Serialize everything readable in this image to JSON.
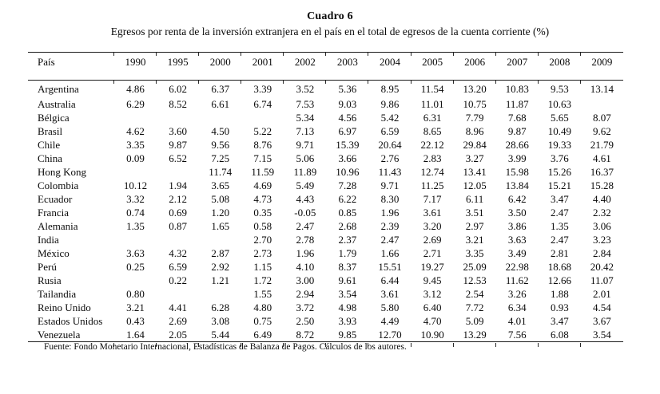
{
  "title": "Cuadro 6",
  "subtitle": "Egresos por renta de la inversión extranjera en el país en el total de egresos de la cuenta corriente (%)",
  "footer": "Fuente: Fondo Monetario Internacional, Estadísticas de Balanza de Pagos. Cálculos de los autores.",
  "table": {
    "col_headers": [
      "País",
      "1990",
      "1995",
      "2000",
      "2001",
      "2002",
      "2003",
      "2004",
      "2005",
      "2006",
      "2007",
      "2008",
      "2009"
    ],
    "rows": [
      {
        "country": "Argentina",
        "values": [
          "4.86",
          "6.02",
          "6.37",
          "3.39",
          "3.52",
          "5.36",
          "8.95",
          "11.54",
          "13.20",
          "10.83",
          "9.53",
          "13.14"
        ]
      },
      {
        "country": "Australia",
        "values": [
          "6.29",
          "8.52",
          "6.61",
          "6.74",
          "7.53",
          "9.03",
          "9.86",
          "11.01",
          "10.75",
          "11.87",
          "10.63",
          ""
        ]
      },
      {
        "country": "Bélgica",
        "values": [
          "",
          "",
          "",
          "",
          "5.34",
          "4.56",
          "5.42",
          "6.31",
          "7.79",
          "7.68",
          "5.65",
          "8.07"
        ]
      },
      {
        "country": "Brasil",
        "values": [
          "4.62",
          "3.60",
          "4.50",
          "5.22",
          "7.13",
          "6.97",
          "6.59",
          "8.65",
          "8.96",
          "9.87",
          "10.49",
          "9.62"
        ]
      },
      {
        "country": "Chile",
        "values": [
          "3.35",
          "9.87",
          "9.56",
          "8.76",
          "9.71",
          "15.39",
          "20.64",
          "22.12",
          "29.84",
          "28.66",
          "19.33",
          "21.79"
        ]
      },
      {
        "country": "China",
        "values": [
          "0.09",
          "6.52",
          "7.25",
          "7.15",
          "5.06",
          "3.66",
          "2.76",
          "2.83",
          "3.27",
          "3.99",
          "3.76",
          "4.61"
        ]
      },
      {
        "country": "Hong Kong",
        "values": [
          "",
          "",
          "11.74",
          "11.59",
          "11.89",
          "10.96",
          "11.43",
          "12.74",
          "13.41",
          "15.98",
          "15.26",
          "16.37"
        ]
      },
      {
        "country": "Colombia",
        "values": [
          "10.12",
          "1.94",
          "3.65",
          "4.69",
          "5.49",
          "7.28",
          "9.71",
          "11.25",
          "12.05",
          "13.84",
          "15.21",
          "15.28"
        ]
      },
      {
        "country": "Ecuador",
        "values": [
          "3.32",
          "2.12",
          "5.08",
          "4.73",
          "4.43",
          "6.22",
          "8.30",
          "7.17",
          "6.11",
          "6.42",
          "3.47",
          "4.40"
        ]
      },
      {
        "country": "Francia",
        "values": [
          "0.74",
          "0.69",
          "1.20",
          "0.35",
          "-0.05",
          "0.85",
          "1.96",
          "3.61",
          "3.51",
          "3.50",
          "2.47",
          "2.32"
        ]
      },
      {
        "country": "Alemania",
        "values": [
          "1.35",
          "0.87",
          "1.65",
          "0.58",
          "2.47",
          "2.68",
          "2.39",
          "3.20",
          "2.97",
          "3.86",
          "1.35",
          "3.06"
        ]
      },
      {
        "country": "India",
        "values": [
          "",
          "",
          "",
          "2.70",
          "2.78",
          "2.37",
          "2.47",
          "2.69",
          "3.21",
          "3.63",
          "2.47",
          "3.23"
        ]
      },
      {
        "country": "México",
        "values": [
          "3.63",
          "4.32",
          "2.87",
          "2.73",
          "1.96",
          "1.79",
          "1.66",
          "2.71",
          "3.35",
          "3.49",
          "2.81",
          "2.84"
        ]
      },
      {
        "country": "Perú",
        "values": [
          "0.25",
          "6.59",
          "2.92",
          "1.15",
          "4.10",
          "8.37",
          "15.51",
          "19.27",
          "25.09",
          "22.98",
          "18.68",
          "20.42"
        ]
      },
      {
        "country": "Rusia",
        "values": [
          "",
          "0.22",
          "1.21",
          "1.72",
          "3.00",
          "9.61",
          "6.44",
          "9.45",
          "12.53",
          "11.62",
          "12.66",
          "11.07"
        ]
      },
      {
        "country": "Tailandia",
        "values": [
          "0.80",
          "",
          "",
          "1.55",
          "2.94",
          "3.54",
          "3.61",
          "3.12",
          "2.54",
          "3.26",
          "1.88",
          "2.01"
        ]
      },
      {
        "country": "Reino Unido",
        "values": [
          "3.21",
          "4.41",
          "6.28",
          "4.80",
          "3.72",
          "4.98",
          "5.80",
          "6.40",
          "7.72",
          "6.34",
          "0.93",
          "4.54"
        ]
      },
      {
        "country": "Estados Unidos",
        "values": [
          "0.43",
          "2.69",
          "3.08",
          "0.75",
          "2.50",
          "3.93",
          "4.49",
          "4.70",
          "5.09",
          "4.01",
          "3.47",
          "3.67"
        ]
      },
      {
        "country": "Venezuela",
        "values": [
          "1.64",
          "2.05",
          "5.44",
          "6.49",
          "8.72",
          "9.85",
          "12.70",
          "10.90",
          "13.29",
          "7.56",
          "6.08",
          "3.54"
        ]
      }
    ]
  }
}
